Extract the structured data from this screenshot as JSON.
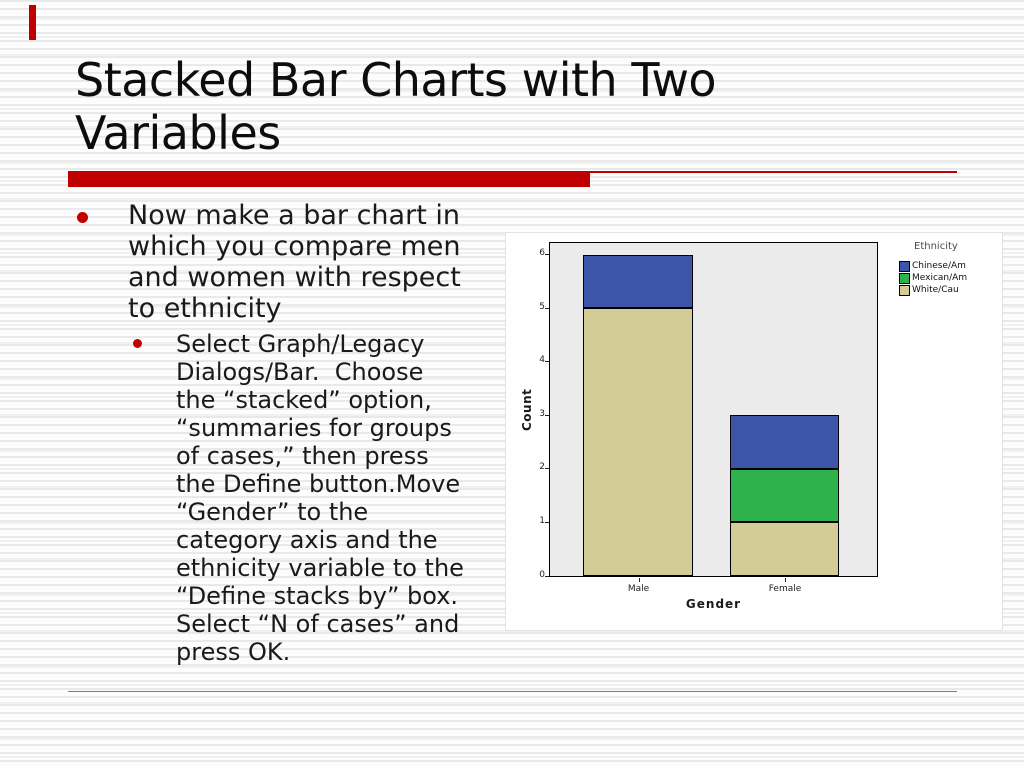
{
  "slide": {
    "title_lines": [
      "Stacked Bar Charts with Two",
      "Variables"
    ],
    "accent_color": "#c00000",
    "bullet": {
      "lines": [
        "Now make a bar chart in",
        "which you compare men",
        "and women with respect",
        "to ethnicity"
      ]
    },
    "sub_bullet": {
      "lines": [
        "Select Graph/Legacy",
        "Dialogs/Bar.  Choose",
        "the “stacked” option,",
        "“summaries for groups",
        "of cases,” then press",
        "the Define button.Move",
        "“Gender” to the",
        "category axis and the",
        "ethnicity variable to the",
        "“Define stacks by” box.",
        "Select “N of cases” and",
        "press OK."
      ]
    }
  },
  "chart_data": {
    "type": "bar",
    "stacked": true,
    "title": "",
    "categories": [
      "Male",
      "Female"
    ],
    "series": [
      {
        "name": "White/Cau",
        "color": "#d3cc96",
        "values": [
          5,
          1
        ]
      },
      {
        "name": "Mexican/Am",
        "color": "#2eb34c",
        "values": [
          0,
          1
        ]
      },
      {
        "name": "Chinese/Am",
        "color": "#3c55a8",
        "values": [
          1,
          1
        ]
      }
    ],
    "legend": {
      "title": "Ethnicity",
      "position": "top-right",
      "order": [
        "Chinese/Am",
        "Mexican/Am",
        "White/Cau"
      ]
    },
    "xlabel": "Gender",
    "ylabel": "Count",
    "ylim": [
      0,
      6.2
    ],
    "yticks": [
      0,
      1,
      2,
      3,
      4,
      5,
      6
    ],
    "plot_bg": "#ebebeb",
    "grid": false
  }
}
